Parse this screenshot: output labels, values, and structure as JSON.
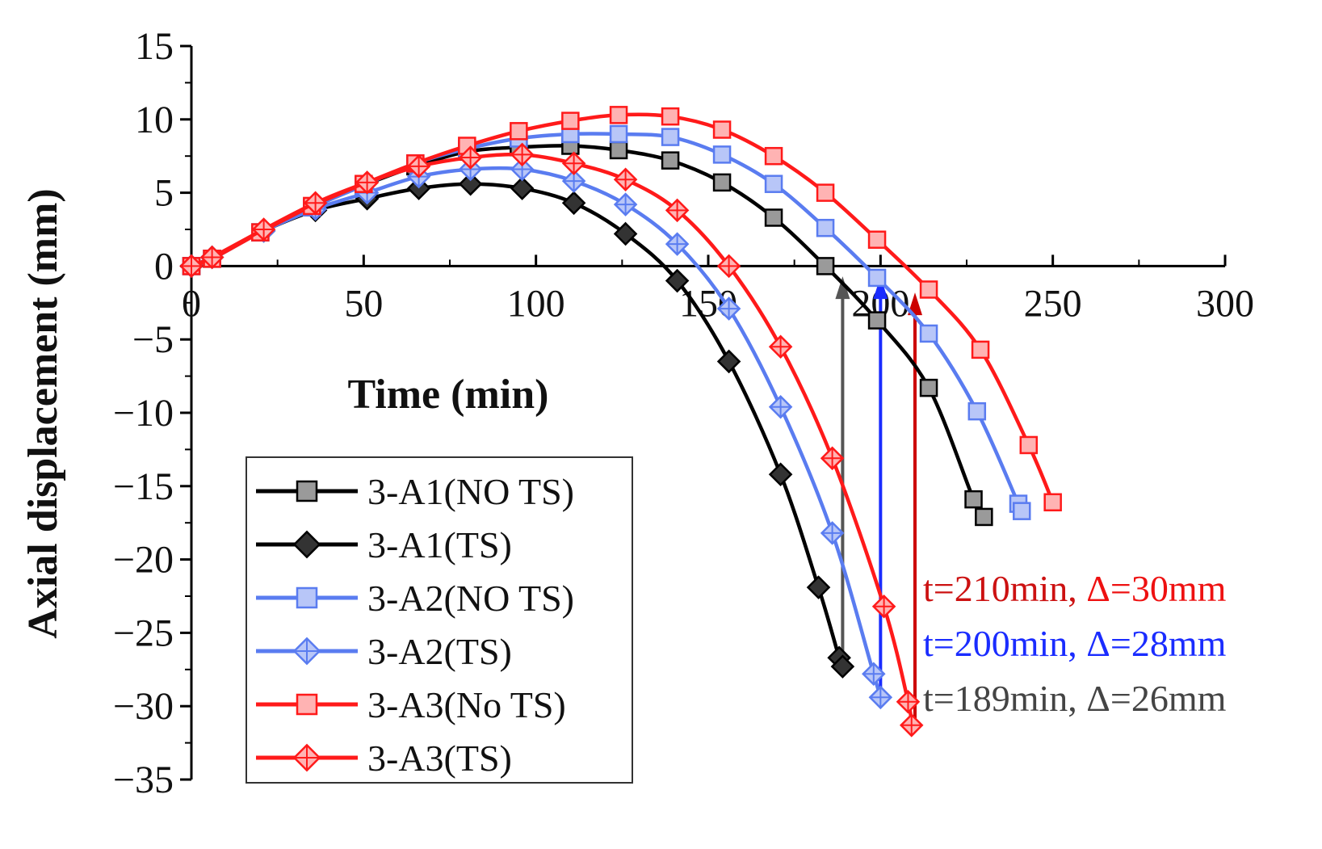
{
  "chart_data": {
    "type": "line",
    "xlabel": "Time (min)",
    "ylabel": "Axial displacement (mm)",
    "xlim": [
      0,
      300
    ],
    "ylim": [
      -35,
      15
    ],
    "xticks": [
      0,
      50,
      100,
      150,
      200,
      250,
      300
    ],
    "yticks": [
      15,
      10,
      5,
      0,
      -5,
      -10,
      -15,
      -20,
      -25,
      -30,
      -35
    ],
    "xtick_labels": [
      "0",
      "50",
      "100",
      "150",
      "200",
      "250",
      "300"
    ],
    "ytick_labels": [
      "15",
      "10",
      "5",
      "0",
      "−10",
      "−15",
      "−20",
      "−25",
      "−30",
      "−35"
    ],
    "ytick_labels_full": [
      "15",
      "10",
      "5",
      "0",
      "−5",
      "−10",
      "−15",
      "−20",
      "−25",
      "−30",
      "−35"
    ],
    "legend_position": "bottom-left",
    "series": [
      {
        "name": "3-A1(NO TS)",
        "color": "#000000",
        "marker": "square",
        "x": [
          0,
          6,
          20,
          35,
          50,
          65,
          80,
          95,
          110,
          124,
          139,
          154,
          169,
          184,
          199,
          214,
          227,
          230
        ],
        "y": [
          0,
          0.5,
          2.3,
          4.0,
          5.5,
          6.8,
          7.8,
          8.1,
          8.2,
          7.9,
          7.2,
          5.7,
          3.3,
          0.0,
          -3.7,
          -8.3,
          -15.9,
          -17.1
        ]
      },
      {
        "name": "3-A1(TS)",
        "color": "#000000",
        "marker": "diamond",
        "x": [
          0,
          6,
          21,
          36,
          51,
          66,
          81,
          96,
          111,
          126,
          141,
          156,
          171,
          182,
          188,
          189
        ],
        "y": [
          0,
          0.6,
          2.4,
          3.8,
          4.6,
          5.3,
          5.6,
          5.3,
          4.3,
          2.2,
          -1.0,
          -6.5,
          -14.2,
          -21.9,
          -26.7,
          -27.3
        ]
      },
      {
        "name": "3-A2(NO TS)",
        "color": "#5a7cf0",
        "marker": "square",
        "x": [
          0,
          6,
          20,
          35,
          50,
          65,
          80,
          95,
          110,
          124,
          139,
          154,
          169,
          184,
          199,
          214,
          228,
          240,
          241
        ],
        "y": [
          0,
          0.5,
          2.3,
          4.0,
          5.5,
          7.0,
          8.0,
          8.7,
          9.0,
          9.0,
          8.8,
          7.6,
          5.6,
          2.6,
          -0.8,
          -4.6,
          -9.9,
          -16.2,
          -16.7
        ]
      },
      {
        "name": "3-A2(TS)",
        "color": "#5a7cf0",
        "marker": "diamond",
        "x": [
          0,
          6,
          21,
          36,
          51,
          66,
          81,
          96,
          111,
          126,
          141,
          156,
          171,
          186,
          198,
          200
        ],
        "y": [
          0,
          0.6,
          2.4,
          3.9,
          5.0,
          6.1,
          6.6,
          6.6,
          5.8,
          4.2,
          1.5,
          -2.9,
          -9.6,
          -18.2,
          -27.8,
          -29.4
        ]
      },
      {
        "name": "3-A3(No TS)",
        "color": "#ff1a1a",
        "marker": "square",
        "x": [
          0,
          6,
          20,
          35,
          50,
          65,
          80,
          95,
          110,
          124,
          139,
          154,
          169,
          184,
          199,
          214,
          229,
          243,
          250
        ],
        "y": [
          0,
          0.5,
          2.3,
          4.1,
          5.6,
          7.0,
          8.2,
          9.2,
          9.9,
          10.3,
          10.2,
          9.3,
          7.5,
          5.0,
          1.8,
          -1.6,
          -5.7,
          -12.2,
          -16.1
        ]
      },
      {
        "name": "3-A3(TS)",
        "color": "#ff1a1a",
        "marker": "diamond",
        "x": [
          0,
          6,
          21,
          36,
          51,
          66,
          81,
          96,
          111,
          126,
          141,
          156,
          171,
          186,
          201,
          208,
          209
        ],
        "y": [
          0,
          0.6,
          2.5,
          4.3,
          5.7,
          6.8,
          7.4,
          7.6,
          7.0,
          5.9,
          3.8,
          0.0,
          -5.5,
          -13.1,
          -23.2,
          -29.7,
          -31.3
        ]
      }
    ],
    "arrows": [
      {
        "x": 189,
        "y_from": -27.3,
        "y_to": -0.7,
        "color": "#555555"
      },
      {
        "x": 200,
        "y_from": -29.4,
        "y_to": -0.7,
        "color": "#1a2cff"
      },
      {
        "x": 210,
        "y_from": -31.3,
        "y_to": -1.8,
        "color": "#cc0000"
      }
    ],
    "annotations": [
      {
        "t_part": "t=210min, ",
        "d_part": "Δ=30mm",
        "t_color": "#cc1111",
        "d_color": "#ee1111"
      },
      {
        "t_part": "t=200min, ",
        "d_part": "Δ=28mm",
        "t_color": "#1a2cff",
        "d_color": "#1a2cff"
      },
      {
        "t_part": "t=189min, ",
        "d_part": "Δ=26mm",
        "t_color": "#444444",
        "d_color": "#444444"
      }
    ]
  }
}
